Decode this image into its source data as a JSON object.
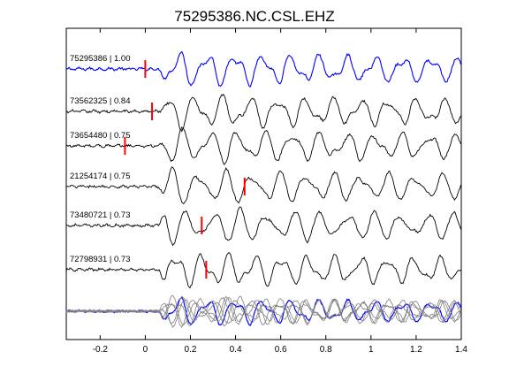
{
  "chart_data": {
    "type": "line",
    "title": "75295386.NC.CSL.EHZ",
    "xlabel": "",
    "ylabel": "",
    "xlim": [
      -0.35,
      1.4
    ],
    "x_ticks": [
      -0.2,
      0,
      0.2,
      0.4,
      0.6,
      0.8,
      1,
      1.2,
      1.4
    ],
    "x_tick_labels": [
      "-0.2",
      "0",
      "0.2",
      "0.4",
      "0.6",
      "0.8",
      "1",
      "1.2",
      "1.4"
    ],
    "grid": false,
    "legend": "none",
    "colors": {
      "reference_trace": "#0000ff",
      "other_traces": "#000000",
      "pick_marker": "#ff0000",
      "stack_overlay": "#808080"
    },
    "traces": [
      {
        "name": "75295386 | 1.00",
        "id": "75295386",
        "cc": 1.0,
        "pick_time": 0.0,
        "reference": true
      },
      {
        "name": "73562325 | 0.84",
        "id": "73562325",
        "cc": 0.84,
        "pick_time": 0.03,
        "reference": false
      },
      {
        "name": "73654480 | 0.75",
        "id": "73654480",
        "cc": 0.75,
        "pick_time": -0.09,
        "reference": false
      },
      {
        "name": "21254174 | 0.75",
        "id": "21254174",
        "cc": 0.75,
        "pick_time": 0.44,
        "reference": false
      },
      {
        "name": "73480721 | 0.73",
        "id": "73480721",
        "cc": 0.73,
        "pick_time": 0.25,
        "reference": false
      },
      {
        "name": "72798931 | 0.73",
        "id": "72798931",
        "cc": 0.73,
        "pick_time": 0.27,
        "reference": false
      }
    ],
    "stack_overlay": {
      "present": true,
      "trace_count": 6
    }
  }
}
